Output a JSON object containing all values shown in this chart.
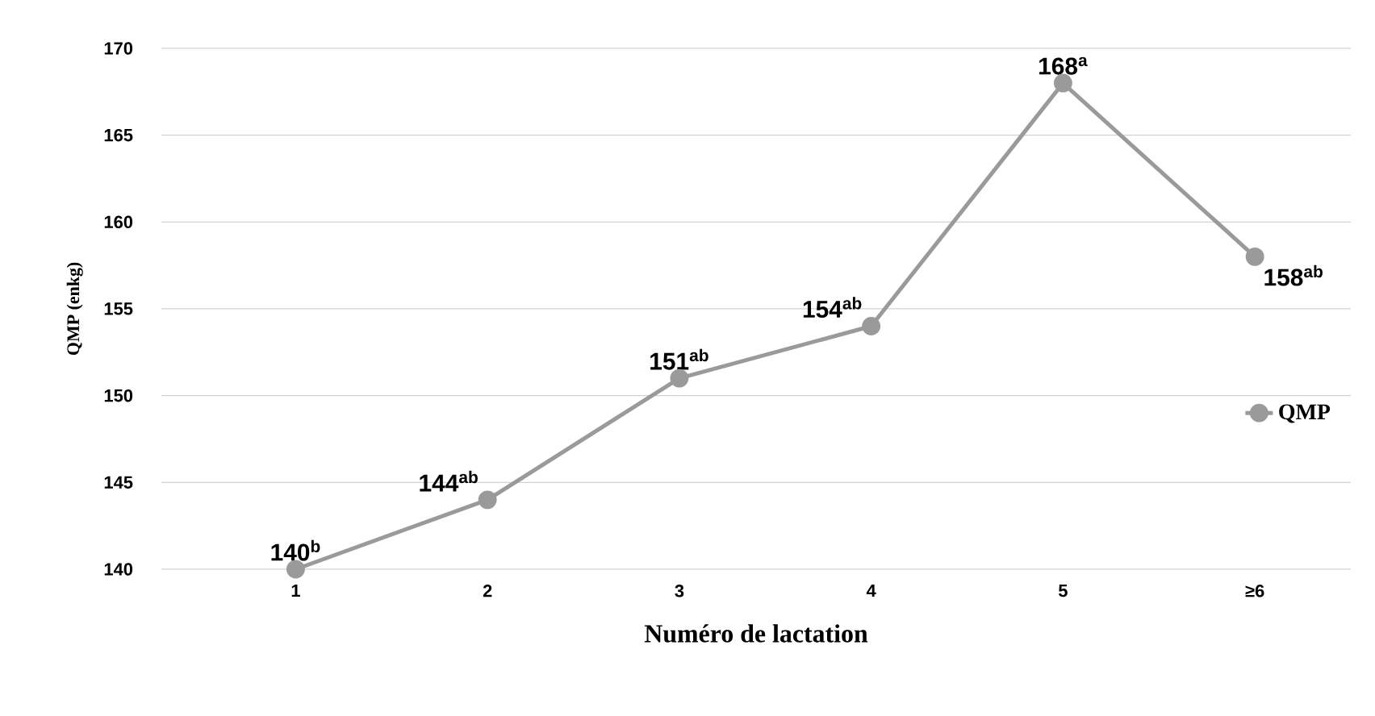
{
  "chart_data": {
    "type": "line",
    "xlabel": "Numéro de lactation",
    "ylabel": "QMP (enkg)",
    "categories": [
      "1",
      "2",
      "3",
      "4",
      "5",
      "≥6"
    ],
    "series": [
      {
        "name": "QMP",
        "color": "#9a9a9a",
        "values": [
          140,
          144,
          151,
          154,
          168,
          158
        ]
      }
    ],
    "value_labels": [
      "140$^{b}$",
      "144$^{ab}$",
      "151$^{ab}$",
      "154$^{ab}$",
      "168$^{a}$",
      "158$^{ab}$"
    ],
    "ylim": [
      140,
      170
    ],
    "yticks": [
      140,
      145,
      150,
      155,
      160,
      165,
      170
    ],
    "grid": "y",
    "legend": "right",
    "marker": "circle",
    "line_style": "solid"
  }
}
